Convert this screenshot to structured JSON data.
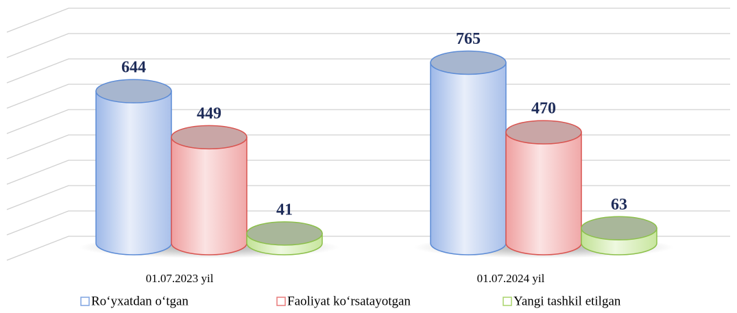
{
  "chart_data": {
    "type": "bar3d",
    "categories": [
      "01.07.2023 yil",
      "01.07.2024 yil"
    ],
    "series": [
      {
        "name": "Ro‘yxatdan o‘tgan",
        "color": "#7fa3e0",
        "values": [
          644,
          765
        ]
      },
      {
        "name": "Faoliyat ko‘rsatayotgan",
        "color": "#e87a7a",
        "values": [
          449,
          470
        ]
      },
      {
        "name": "Yangi tashkil etilgan",
        "color": "#a8d46a",
        "values": [
          41,
          63
        ]
      }
    ],
    "ylim": [
      0,
      900
    ],
    "yticks": [
      0,
      100,
      200,
      300,
      400,
      500,
      600,
      700,
      800,
      900
    ],
    "grid": true
  }
}
